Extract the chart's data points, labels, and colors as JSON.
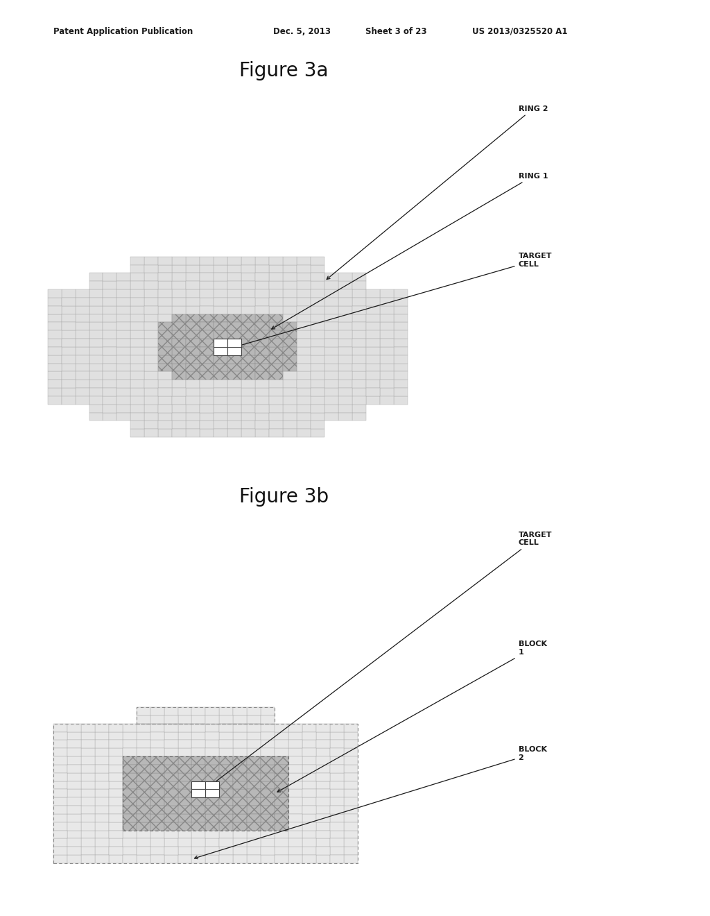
{
  "fig_title_a": "Figure 3a",
  "fig_title_b": "Figure 3b",
  "header_text": "Patent Application Publication",
  "header_date": "Dec. 5, 2013",
  "header_sheet": "Sheet 3 of 23",
  "header_patent": "US 2013/0325520 A1",
  "background_color": "#ffffff",
  "ring2_face": "#e0e0e0",
  "ring2_edge": "#aaaaaa",
  "ring1_face": "#b8b8b8",
  "ring1_edge": "#888888",
  "target_face": "#ffffff",
  "target_edge": "#444444",
  "block2_face": "#e8e8e8",
  "block2_edge": "#aaaaaa",
  "block1_face": "#b8b8b8",
  "block1_edge": "#888888",
  "annotation_color": "#1a1a1a",
  "header_color": "#1a1a1a"
}
